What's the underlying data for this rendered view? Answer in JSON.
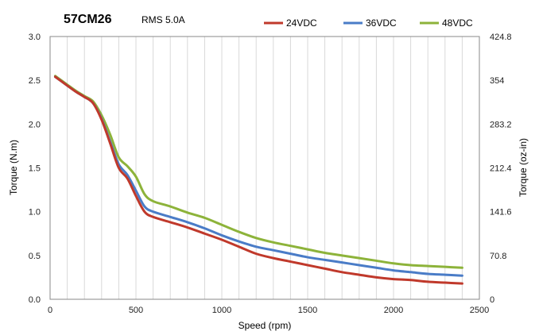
{
  "chart_data": {
    "type": "line",
    "title": "57CM26",
    "subtitle": "RMS 5.0A",
    "xlabel": "Speed (rpm)",
    "ylabel": "Torque (N.m)",
    "y2label": "Torque (oz-in)",
    "xlim": [
      0,
      2500
    ],
    "ylim": [
      0,
      3.0
    ],
    "x_ticks": [
      "0",
      "500",
      "1000",
      "1500",
      "2000",
      "2500"
    ],
    "y_ticks": [
      "0.0",
      "0.5",
      "1.0",
      "1.5",
      "2.0",
      "2.5",
      "3.0"
    ],
    "y2_ticks": [
      "0",
      "70.8",
      "141.6",
      "212.4",
      "283.2",
      "354",
      "424.8"
    ],
    "grid": "vertical",
    "legend_position": "top-right",
    "series": [
      {
        "name": "24VDC",
        "color": "#C0392B",
        "x": [
          30,
          100,
          150,
          200,
          250,
          300,
          350,
          400,
          450,
          500,
          550,
          600,
          700,
          800,
          900,
          1000,
          1100,
          1200,
          1300,
          1400,
          1500,
          1600,
          1700,
          1800,
          1900,
          2000,
          2100,
          2200,
          2300,
          2400
        ],
        "y": [
          2.54,
          2.44,
          2.37,
          2.31,
          2.24,
          2.05,
          1.78,
          1.5,
          1.38,
          1.18,
          1.0,
          0.94,
          0.88,
          0.82,
          0.75,
          0.68,
          0.6,
          0.52,
          0.47,
          0.43,
          0.39,
          0.35,
          0.31,
          0.28,
          0.25,
          0.23,
          0.22,
          0.2,
          0.19,
          0.18
        ]
      },
      {
        "name": "36VDC",
        "color": "#4A7CC7",
        "x": [
          30,
          100,
          150,
          200,
          250,
          300,
          350,
          400,
          450,
          500,
          550,
          600,
          700,
          800,
          900,
          1000,
          1100,
          1200,
          1300,
          1400,
          1500,
          1600,
          1700,
          1800,
          1900,
          2000,
          2100,
          2200,
          2300,
          2400
        ],
        "y": [
          2.54,
          2.44,
          2.37,
          2.31,
          2.24,
          2.06,
          1.8,
          1.54,
          1.42,
          1.24,
          1.06,
          1.0,
          0.94,
          0.88,
          0.81,
          0.73,
          0.66,
          0.6,
          0.56,
          0.52,
          0.48,
          0.45,
          0.42,
          0.39,
          0.36,
          0.33,
          0.31,
          0.29,
          0.28,
          0.27
        ]
      },
      {
        "name": "48VDC",
        "color": "#8DB33A",
        "x": [
          30,
          100,
          150,
          200,
          250,
          300,
          350,
          400,
          450,
          500,
          550,
          600,
          700,
          800,
          900,
          1000,
          1100,
          1200,
          1300,
          1400,
          1500,
          1600,
          1700,
          1800,
          1900,
          2000,
          2100,
          2200,
          2300,
          2400
        ],
        "y": [
          2.55,
          2.45,
          2.38,
          2.32,
          2.26,
          2.1,
          1.88,
          1.62,
          1.52,
          1.4,
          1.2,
          1.12,
          1.06,
          0.99,
          0.93,
          0.85,
          0.77,
          0.7,
          0.65,
          0.61,
          0.57,
          0.53,
          0.5,
          0.47,
          0.44,
          0.41,
          0.39,
          0.38,
          0.37,
          0.36
        ]
      }
    ]
  }
}
